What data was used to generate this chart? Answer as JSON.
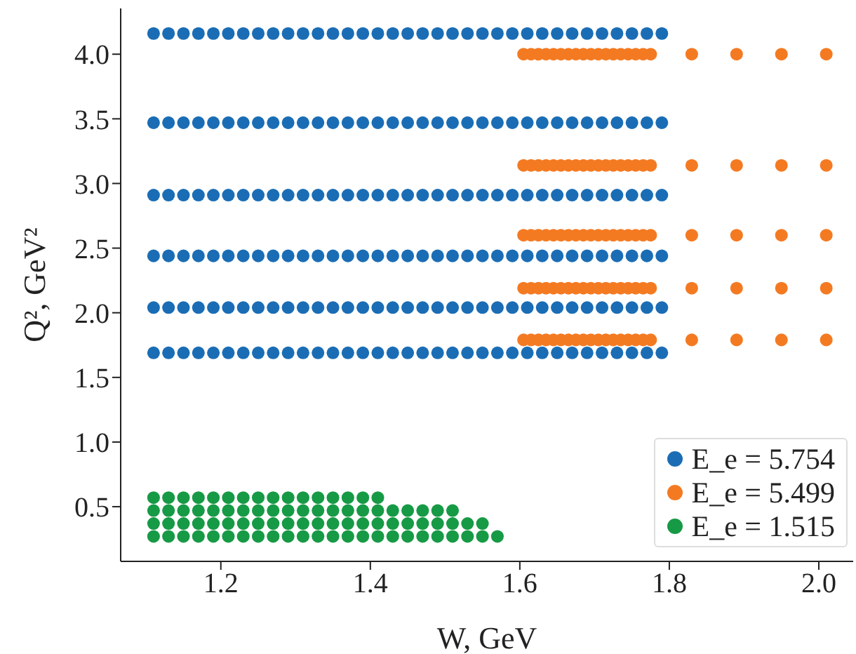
{
  "chart_data": {
    "type": "scatter",
    "xlabel": "W, GeV",
    "ylabel": "Q², GeV²",
    "xlim": [
      1.066,
      2.046
    ],
    "ylim": [
      0.077,
      4.354
    ],
    "xticks": [
      1.2,
      1.4,
      1.6,
      1.8,
      {
        "value": 2,
        "label": "2.0"
      }
    ],
    "yticks": [
      0.5,
      {
        "value": 1,
        "label": "1.0"
      },
      1.5,
      {
        "value": 2,
        "label": "2.0"
      },
      2.5,
      {
        "value": 3,
        "label": "3.0"
      },
      3.5,
      {
        "value": 4,
        "label": "4.0"
      }
    ],
    "legend": "bottom right",
    "marker": "circle",
    "series": [
      {
        "name": "E_e = 5.754",
        "color": "#1a6db5",
        "x": [
          1.11,
          1.13,
          1.15,
          1.17,
          1.19,
          1.21,
          1.23,
          1.25,
          1.27,
          1.29,
          1.31,
          1.33,
          1.35,
          1.37,
          1.39,
          1.41,
          1.43,
          1.45,
          1.47,
          1.49,
          1.51,
          1.53,
          1.55,
          1.57,
          1.59,
          1.61,
          1.63,
          1.65,
          1.67,
          1.69,
          1.71,
          1.73,
          1.75,
          1.77,
          1.79,
          1.11,
          1.13,
          1.15,
          1.17,
          1.19,
          1.21,
          1.23,
          1.25,
          1.27,
          1.29,
          1.31,
          1.33,
          1.35,
          1.37,
          1.39,
          1.41,
          1.43,
          1.45,
          1.47,
          1.49,
          1.51,
          1.53,
          1.55,
          1.57,
          1.59,
          1.61,
          1.63,
          1.65,
          1.67,
          1.69,
          1.71,
          1.73,
          1.75,
          1.77,
          1.79,
          1.11,
          1.13,
          1.15,
          1.17,
          1.19,
          1.21,
          1.23,
          1.25,
          1.27,
          1.29,
          1.31,
          1.33,
          1.35,
          1.37,
          1.39,
          1.41,
          1.43,
          1.45,
          1.47,
          1.49,
          1.51,
          1.53,
          1.55,
          1.57,
          1.59,
          1.61,
          1.63,
          1.65,
          1.67,
          1.69,
          1.71,
          1.73,
          1.75,
          1.77,
          1.79,
          1.11,
          1.13,
          1.15,
          1.17,
          1.19,
          1.21,
          1.23,
          1.25,
          1.27,
          1.29,
          1.31,
          1.33,
          1.35,
          1.37,
          1.39,
          1.41,
          1.43,
          1.45,
          1.47,
          1.49,
          1.51,
          1.53,
          1.55,
          1.57,
          1.59,
          1.61,
          1.63,
          1.65,
          1.67,
          1.69,
          1.71,
          1.73,
          1.75,
          1.77,
          1.79,
          1.11,
          1.13,
          1.15,
          1.17,
          1.19,
          1.21,
          1.23,
          1.25,
          1.27,
          1.29,
          1.31,
          1.33,
          1.35,
          1.37,
          1.39,
          1.41,
          1.43,
          1.45,
          1.47,
          1.49,
          1.51,
          1.53,
          1.55,
          1.57,
          1.59,
          1.61,
          1.63,
          1.65,
          1.67,
          1.69,
          1.71,
          1.73,
          1.75,
          1.77,
          1.79,
          1.11,
          1.13,
          1.15,
          1.17,
          1.19,
          1.21,
          1.23,
          1.25,
          1.27,
          1.29,
          1.31,
          1.33,
          1.35,
          1.37,
          1.39,
          1.41,
          1.43,
          1.45,
          1.47,
          1.49,
          1.51,
          1.53,
          1.55,
          1.57,
          1.59,
          1.61,
          1.63,
          1.65,
          1.67,
          1.69,
          1.71,
          1.73,
          1.75,
          1.77,
          1.79
        ],
        "values": [
          4.16,
          4.16,
          4.16,
          4.16,
          4.16,
          4.16,
          4.16,
          4.16,
          4.16,
          4.16,
          4.16,
          4.16,
          4.16,
          4.16,
          4.16,
          4.16,
          4.16,
          4.16,
          4.16,
          4.16,
          4.16,
          4.16,
          4.16,
          4.16,
          4.16,
          4.16,
          4.16,
          4.16,
          4.16,
          4.16,
          4.16,
          4.16,
          4.16,
          4.16,
          4.16,
          3.47,
          3.47,
          3.47,
          3.47,
          3.47,
          3.47,
          3.47,
          3.47,
          3.47,
          3.47,
          3.47,
          3.47,
          3.47,
          3.47,
          3.47,
          3.47,
          3.47,
          3.47,
          3.47,
          3.47,
          3.47,
          3.47,
          3.47,
          3.47,
          3.47,
          3.47,
          3.47,
          3.47,
          3.47,
          3.47,
          3.47,
          3.47,
          3.47,
          3.47,
          3.47,
          2.91,
          2.91,
          2.91,
          2.91,
          2.91,
          2.91,
          2.91,
          2.91,
          2.91,
          2.91,
          2.91,
          2.91,
          2.91,
          2.91,
          2.91,
          2.91,
          2.91,
          2.91,
          2.91,
          2.91,
          2.91,
          2.91,
          2.91,
          2.91,
          2.91,
          2.91,
          2.91,
          2.91,
          2.91,
          2.91,
          2.91,
          2.91,
          2.91,
          2.91,
          2.91,
          2.44,
          2.44,
          2.44,
          2.44,
          2.44,
          2.44,
          2.44,
          2.44,
          2.44,
          2.44,
          2.44,
          2.44,
          2.44,
          2.44,
          2.44,
          2.44,
          2.44,
          2.44,
          2.44,
          2.44,
          2.44,
          2.44,
          2.44,
          2.44,
          2.44,
          2.44,
          2.44,
          2.44,
          2.44,
          2.44,
          2.44,
          2.44,
          2.44,
          2.44,
          2.44,
          2.04,
          2.04,
          2.04,
          2.04,
          2.04,
          2.04,
          2.04,
          2.04,
          2.04,
          2.04,
          2.04,
          2.04,
          2.04,
          2.04,
          2.04,
          2.04,
          2.04,
          2.04,
          2.04,
          2.04,
          2.04,
          2.04,
          2.04,
          2.04,
          2.04,
          2.04,
          2.04,
          2.04,
          2.04,
          2.04,
          2.04,
          2.04,
          2.04,
          2.04,
          2.04,
          1.69,
          1.69,
          1.69,
          1.69,
          1.69,
          1.69,
          1.69,
          1.69,
          1.69,
          1.69,
          1.69,
          1.69,
          1.69,
          1.69,
          1.69,
          1.69,
          1.69,
          1.69,
          1.69,
          1.69,
          1.69,
          1.69,
          1.69,
          1.69,
          1.69,
          1.69,
          1.69,
          1.69,
          1.69,
          1.69,
          1.69,
          1.69,
          1.69,
          1.69,
          1.69
        ]
      },
      {
        "name": "E_e = 5.499",
        "color": "#f47a22",
        "x": [
          1.605,
          1.615,
          1.625,
          1.635,
          1.645,
          1.655,
          1.665,
          1.675,
          1.685,
          1.695,
          1.705,
          1.715,
          1.725,
          1.735,
          1.745,
          1.755,
          1.765,
          1.775,
          1.83,
          1.89,
          1.95,
          2.01,
          1.605,
          1.615,
          1.625,
          1.635,
          1.645,
          1.655,
          1.665,
          1.675,
          1.685,
          1.695,
          1.705,
          1.715,
          1.725,
          1.735,
          1.745,
          1.755,
          1.765,
          1.775,
          1.83,
          1.89,
          1.95,
          2.01,
          1.605,
          1.615,
          1.625,
          1.635,
          1.645,
          1.655,
          1.665,
          1.675,
          1.685,
          1.695,
          1.705,
          1.715,
          1.725,
          1.735,
          1.745,
          1.755,
          1.765,
          1.775,
          1.83,
          1.89,
          1.95,
          2.01,
          1.605,
          1.615,
          1.625,
          1.635,
          1.645,
          1.655,
          1.665,
          1.675,
          1.685,
          1.695,
          1.705,
          1.715,
          1.725,
          1.735,
          1.745,
          1.755,
          1.765,
          1.775,
          1.83,
          1.89,
          1.95,
          2.01,
          1.605,
          1.615,
          1.625,
          1.635,
          1.645,
          1.655,
          1.665,
          1.675,
          1.685,
          1.695,
          1.705,
          1.715,
          1.725,
          1.735,
          1.745,
          1.755,
          1.765,
          1.775,
          1.83,
          1.89,
          1.95,
          2.01
        ],
        "values": [
          4.0,
          4.0,
          4.0,
          4.0,
          4.0,
          4.0,
          4.0,
          4.0,
          4.0,
          4.0,
          4.0,
          4.0,
          4.0,
          4.0,
          4.0,
          4.0,
          4.0,
          4.0,
          4.0,
          4.0,
          4.0,
          4.0,
          3.14,
          3.14,
          3.14,
          3.14,
          3.14,
          3.14,
          3.14,
          3.14,
          3.14,
          3.14,
          3.14,
          3.14,
          3.14,
          3.14,
          3.14,
          3.14,
          3.14,
          3.14,
          3.14,
          3.14,
          3.14,
          3.14,
          2.6,
          2.6,
          2.6,
          2.6,
          2.6,
          2.6,
          2.6,
          2.6,
          2.6,
          2.6,
          2.6,
          2.6,
          2.6,
          2.6,
          2.6,
          2.6,
          2.6,
          2.6,
          2.6,
          2.6,
          2.6,
          2.6,
          2.19,
          2.19,
          2.19,
          2.19,
          2.19,
          2.19,
          2.19,
          2.19,
          2.19,
          2.19,
          2.19,
          2.19,
          2.19,
          2.19,
          2.19,
          2.19,
          2.19,
          2.19,
          2.19,
          2.19,
          2.19,
          2.19,
          1.79,
          1.79,
          1.79,
          1.79,
          1.79,
          1.79,
          1.79,
          1.79,
          1.79,
          1.79,
          1.79,
          1.79,
          1.79,
          1.79,
          1.79,
          1.79,
          1.79,
          1.79,
          1.79,
          1.79,
          1.79,
          1.79
        ]
      },
      {
        "name": "E_e = 1.515",
        "color": "#179a45",
        "x": [
          1.11,
          1.13,
          1.15,
          1.17,
          1.19,
          1.21,
          1.23,
          1.25,
          1.27,
          1.29,
          1.31,
          1.33,
          1.35,
          1.37,
          1.39,
          1.41,
          1.11,
          1.13,
          1.15,
          1.17,
          1.19,
          1.21,
          1.23,
          1.25,
          1.27,
          1.29,
          1.31,
          1.33,
          1.35,
          1.37,
          1.39,
          1.41,
          1.43,
          1.45,
          1.47,
          1.49,
          1.51,
          1.11,
          1.13,
          1.15,
          1.17,
          1.19,
          1.21,
          1.23,
          1.25,
          1.27,
          1.29,
          1.31,
          1.33,
          1.35,
          1.37,
          1.39,
          1.41,
          1.43,
          1.45,
          1.47,
          1.49,
          1.51,
          1.53,
          1.55,
          1.11,
          1.13,
          1.15,
          1.17,
          1.19,
          1.21,
          1.23,
          1.25,
          1.27,
          1.29,
          1.31,
          1.33,
          1.35,
          1.37,
          1.39,
          1.41,
          1.43,
          1.45,
          1.47,
          1.49,
          1.51,
          1.53,
          1.55,
          1.57
        ],
        "values": [
          0.57,
          0.57,
          0.57,
          0.57,
          0.57,
          0.57,
          0.57,
          0.57,
          0.57,
          0.57,
          0.57,
          0.57,
          0.57,
          0.57,
          0.57,
          0.57,
          0.47,
          0.47,
          0.47,
          0.47,
          0.47,
          0.47,
          0.47,
          0.47,
          0.47,
          0.47,
          0.47,
          0.47,
          0.47,
          0.47,
          0.47,
          0.47,
          0.47,
          0.47,
          0.47,
          0.47,
          0.47,
          0.37,
          0.37,
          0.37,
          0.37,
          0.37,
          0.37,
          0.37,
          0.37,
          0.37,
          0.37,
          0.37,
          0.37,
          0.37,
          0.37,
          0.37,
          0.37,
          0.37,
          0.37,
          0.37,
          0.37,
          0.37,
          0.37,
          0.37,
          0.27,
          0.27,
          0.27,
          0.27,
          0.27,
          0.27,
          0.27,
          0.27,
          0.27,
          0.27,
          0.27,
          0.27,
          0.27,
          0.27,
          0.27,
          0.27,
          0.27,
          0.27,
          0.27,
          0.27,
          0.27,
          0.27,
          0.27,
          0.27
        ]
      }
    ]
  }
}
